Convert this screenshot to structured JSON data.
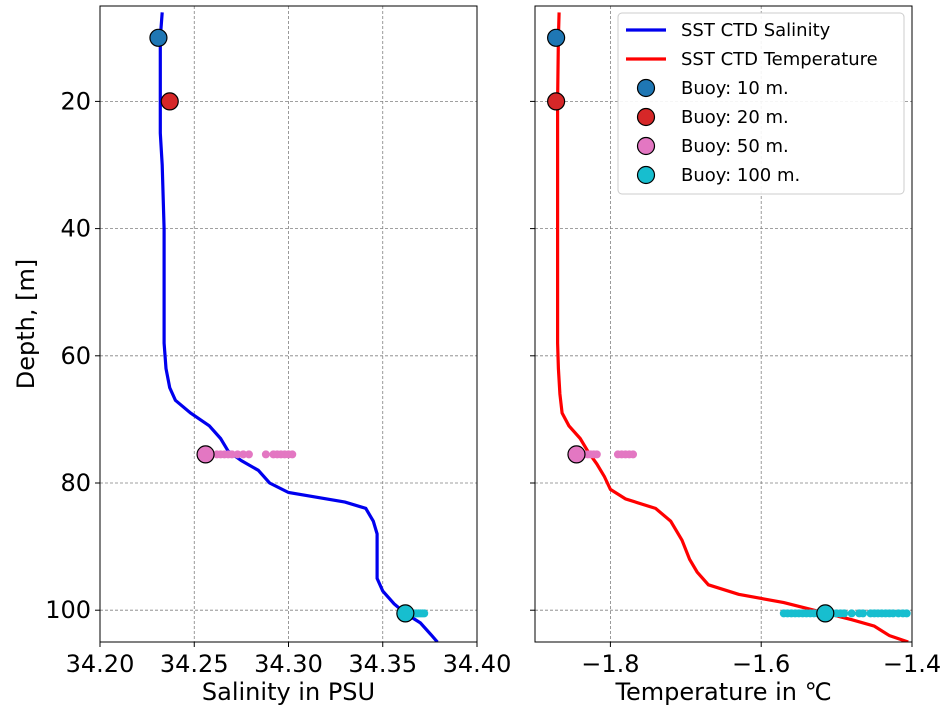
{
  "chart_data": [
    {
      "type": "line",
      "xlabel": "Salinity in PSU",
      "ylabel": "Depth, [m]",
      "xlim": [
        34.2,
        34.4
      ],
      "ylim": [
        105,
        5
      ],
      "x_ticks": [
        "34.20",
        "34.25",
        "34.30",
        "34.35",
        "34.40"
      ],
      "y_ticks": [
        "20",
        "40",
        "60",
        "80",
        "100"
      ],
      "grid": true,
      "series": [
        {
          "name": "SST CTD Salinity",
          "color": "#0000ee",
          "points": [
            [
              34.233,
              6
            ],
            [
              34.232,
              10
            ],
            [
              34.232,
              15
            ],
            [
              34.232,
              20
            ],
            [
              34.232,
              25
            ],
            [
              34.233,
              30
            ],
            [
              34.234,
              40
            ],
            [
              34.234,
              50
            ],
            [
              34.234,
              58
            ],
            [
              34.235,
              62
            ],
            [
              34.237,
              65
            ],
            [
              34.24,
              67
            ],
            [
              34.248,
              69
            ],
            [
              34.258,
              71
            ],
            [
              34.264,
              73
            ],
            [
              34.268,
              75
            ],
            [
              34.275,
              76.5
            ],
            [
              34.284,
              78
            ],
            [
              34.29,
              80
            ],
            [
              34.3,
              81.5
            ],
            [
              34.33,
              83
            ],
            [
              34.341,
              84
            ],
            [
              34.345,
              86
            ],
            [
              34.347,
              88
            ],
            [
              34.347,
              92
            ],
            [
              34.347,
              95
            ],
            [
              34.35,
              97
            ],
            [
              34.356,
              99
            ],
            [
              34.362,
              100.5
            ],
            [
              34.37,
              102
            ],
            [
              34.376,
              104
            ],
            [
              34.379,
              105
            ]
          ]
        }
      ],
      "buoys": [
        {
          "name": "Buoy: 10 m.",
          "color": "#1f77b4",
          "x": 34.231,
          "y": 10
        },
        {
          "name": "Buoy: 20 m.",
          "color": "#d62728",
          "x": 34.237,
          "y": 20
        },
        {
          "name": "Buoy: 50 m.",
          "color": "#e377c2",
          "x": 34.256,
          "y": 75.5,
          "scatter_x": [
            34.258,
            34.262,
            34.264,
            34.266,
            34.268,
            34.27,
            34.273,
            34.276,
            34.279,
            34.288,
            34.292,
            34.294,
            34.296,
            34.298,
            34.3,
            34.302
          ]
        },
        {
          "name": "Buoy: 100 m.",
          "color": "#17becf",
          "x": 34.362,
          "y": 100.5,
          "scatter_x": [
            34.364,
            34.366,
            34.367,
            34.368,
            34.369,
            34.37,
            34.371,
            34.372
          ]
        }
      ]
    },
    {
      "type": "line",
      "xlabel": "Temperature in ℃",
      "ylabel": "",
      "xlim": [
        -1.9,
        -1.4
      ],
      "ylim": [
        105,
        5
      ],
      "x_ticks": [
        "−1.8",
        "−1.6",
        "−1.4"
      ],
      "x_tick_values": [
        -1.8,
        -1.6,
        -1.4
      ],
      "grid": true,
      "series": [
        {
          "name": "SST CTD Temperature",
          "color": "#ff0000",
          "points": [
            [
              -1.868,
              6
            ],
            [
              -1.869,
              10
            ],
            [
              -1.87,
              20
            ],
            [
              -1.87,
              30
            ],
            [
              -1.87,
              40
            ],
            [
              -1.87,
              50
            ],
            [
              -1.87,
              58
            ],
            [
              -1.869,
              62
            ],
            [
              -1.867,
              66
            ],
            [
              -1.864,
              69
            ],
            [
              -1.855,
              71
            ],
            [
              -1.84,
              73
            ],
            [
              -1.83,
              75
            ],
            [
              -1.818,
              77
            ],
            [
              -1.808,
              79
            ],
            [
              -1.8,
              81
            ],
            [
              -1.78,
              82.5
            ],
            [
              -1.74,
              84
            ],
            [
              -1.72,
              86
            ],
            [
              -1.705,
              89
            ],
            [
              -1.695,
              92
            ],
            [
              -1.685,
              94
            ],
            [
              -1.67,
              96
            ],
            [
              -1.63,
              97.5
            ],
            [
              -1.57,
              98.8
            ],
            [
              -1.53,
              100
            ],
            [
              -1.48,
              101.5
            ],
            [
              -1.45,
              102.5
            ],
            [
              -1.43,
              104
            ],
            [
              -1.405,
              105
            ]
          ]
        }
      ],
      "buoys": [
        {
          "name": "Buoy: 10 m.",
          "color": "#1f77b4",
          "x": -1.872,
          "y": 10
        },
        {
          "name": "Buoy: 20 m.",
          "color": "#d62728",
          "x": -1.872,
          "y": 20
        },
        {
          "name": "Buoy: 50 m.",
          "color": "#e377c2",
          "x": -1.845,
          "y": 75.5,
          "scatter_x": [
            -1.84,
            -1.835,
            -1.83,
            -1.826,
            -1.822,
            -1.818,
            -1.79,
            -1.785,
            -1.78,
            -1.775,
            -1.77
          ]
        },
        {
          "name": "Buoy: 100 m.",
          "color": "#17becf",
          "x": -1.515,
          "y": 100.5,
          "scatter_x": [
            -1.57,
            -1.565,
            -1.56,
            -1.555,
            -1.55,
            -1.545,
            -1.54,
            -1.535,
            -1.53,
            -1.525,
            -1.52,
            -1.51,
            -1.505,
            -1.5,
            -1.495,
            -1.49,
            -1.48,
            -1.47,
            -1.465,
            -1.455,
            -1.45,
            -1.445,
            -1.44,
            -1.435,
            -1.43,
            -1.425,
            -1.418,
            -1.412,
            -1.407
          ]
        }
      ]
    }
  ],
  "legend": {
    "placement": "top-right",
    "entries": [
      {
        "label": "SST CTD Salinity",
        "kind": "line",
        "color": "#0000ee"
      },
      {
        "label": "SST CTD Temperature",
        "kind": "line",
        "color": "#ff0000"
      },
      {
        "label": "Buoy: 10 m.",
        "kind": "marker",
        "color": "#1f77b4"
      },
      {
        "label": "Buoy: 20 m.",
        "kind": "marker",
        "color": "#d62728"
      },
      {
        "label": "Buoy: 50 m.",
        "kind": "marker",
        "color": "#e377c2"
      },
      {
        "label": "Buoy: 100 m.",
        "kind": "marker",
        "color": "#17becf"
      }
    ]
  }
}
